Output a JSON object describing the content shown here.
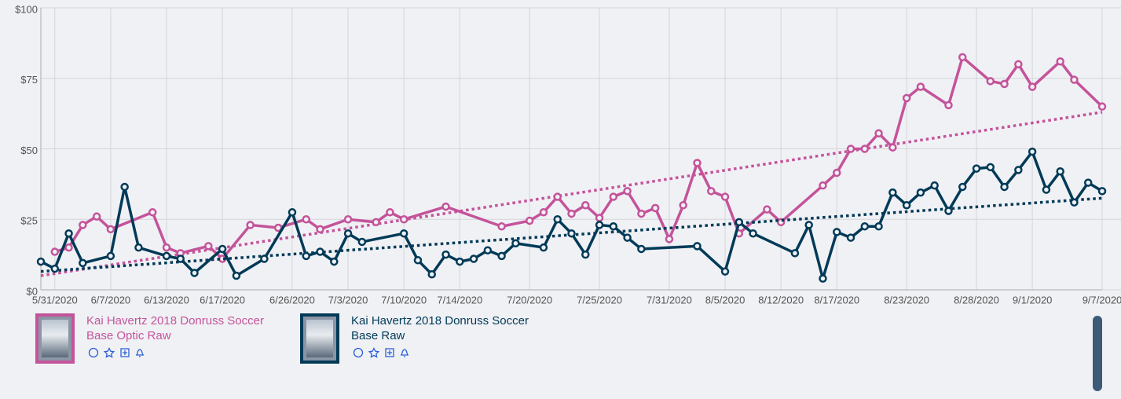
{
  "chart_data": {
    "type": "line",
    "categories": [
      null,
      "5/31/2020",
      null,
      null,
      null,
      "6/7/2020",
      null,
      null,
      null,
      "6/13/2020",
      null,
      null,
      null,
      "6/17/2020",
      null,
      null,
      null,
      null,
      "6/26/2020",
      null,
      null,
      null,
      "7/3/2020",
      null,
      null,
      null,
      "7/10/2020",
      null,
      null,
      null,
      "7/14/2020",
      null,
      null,
      null,
      null,
      "7/20/2020",
      null,
      null,
      null,
      null,
      "7/25/2020",
      null,
      null,
      null,
      null,
      "7/31/2020",
      null,
      null,
      null,
      "8/5/2020",
      null,
      null,
      null,
      "8/12/2020",
      null,
      null,
      null,
      "8/17/2020",
      null,
      null,
      null,
      null,
      "8/23/2020",
      null,
      null,
      null,
      null,
      "8/28/2020",
      null,
      null,
      null,
      "9/1/2020",
      null,
      null,
      null,
      null,
      "9/7/2020"
    ],
    "series": [
      {
        "name": "Kai Havertz 2018 Donruss Soccer Base Optic Raw",
        "color": "#c4539a",
        "trendline": [
          5,
          63
        ],
        "values": [
          null,
          13.5,
          15,
          23,
          26,
          21.5,
          null,
          null,
          27.5,
          15,
          13,
          null,
          15.5,
          11,
          null,
          23,
          null,
          22,
          null,
          25,
          21.5,
          null,
          25,
          null,
          24,
          27.5,
          25,
          null,
          null,
          29.5,
          null,
          null,
          null,
          22.5,
          null,
          24.5,
          27.5,
          33,
          27,
          30,
          25.5,
          33,
          35,
          27,
          29,
          18,
          30,
          45,
          35,
          33,
          20,
          null,
          28.5,
          24,
          null,
          null,
          37,
          41.5,
          50,
          50,
          55.5,
          50.5,
          68,
          72,
          null,
          65.5,
          82.5,
          null,
          74,
          73,
          80,
          72,
          null,
          81,
          74.5,
          null,
          65
        ]
      },
      {
        "name": "Kai Havertz 2018 Donruss Soccer Base Raw",
        "color": "#003a57",
        "trendline": [
          6.5,
          32.5
        ],
        "values": [
          10,
          7.5,
          20,
          9.5,
          null,
          12,
          36.5,
          15,
          null,
          12,
          11,
          6,
          null,
          14.5,
          5,
          null,
          11,
          null,
          27.5,
          12,
          13.5,
          10,
          20,
          17,
          null,
          null,
          20,
          10.5,
          5.5,
          12.5,
          10,
          11,
          14,
          12,
          16.5,
          null,
          15,
          25,
          20,
          12.5,
          23,
          22.5,
          18.5,
          14.5,
          null,
          null,
          null,
          15.5,
          null,
          6.5,
          24,
          20,
          null,
          null,
          13,
          23,
          4,
          20.5,
          18.5,
          22.5,
          22.5,
          34.5,
          30,
          34.5,
          37,
          28,
          36.5,
          43,
          43.5,
          36.5,
          42.5,
          49,
          35.5,
          42,
          31,
          38,
          35
        ]
      }
    ],
    "ylim": [
      0,
      100
    ],
    "yticks": [
      {
        "value": 0,
        "label": "$0"
      },
      {
        "value": 25,
        "label": "$25"
      },
      {
        "value": 50,
        "label": "$50"
      },
      {
        "value": 75,
        "label": "$75"
      },
      {
        "value": 100,
        "label": "$100"
      }
    ],
    "grid": true
  }
}
